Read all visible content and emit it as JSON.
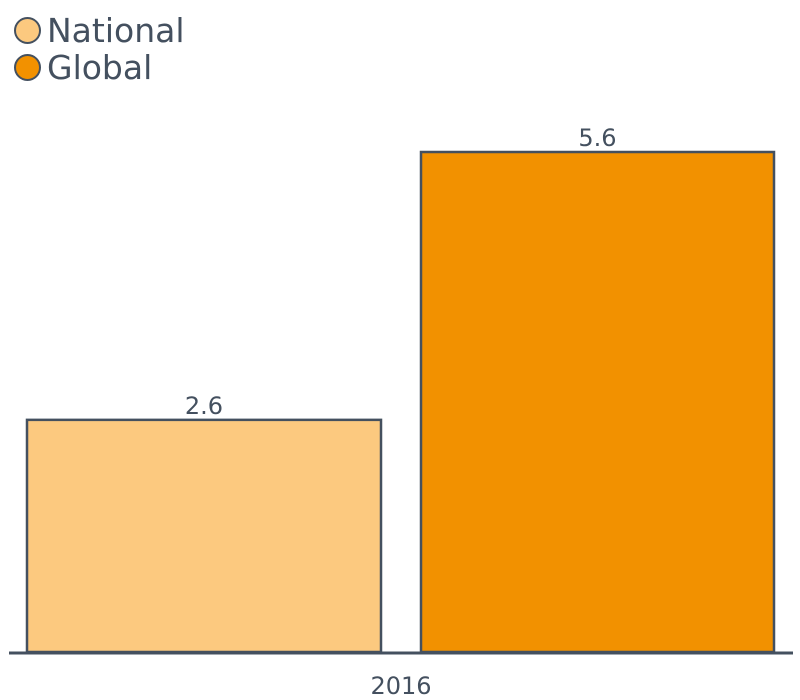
{
  "chart_data": {
    "type": "bar",
    "categories": [
      "2016"
    ],
    "series": [
      {
        "name": "National",
        "values": [
          2.6
        ],
        "color": "#fcc97f"
      },
      {
        "name": "Global",
        "values": [
          5.6
        ],
        "color": "#f29100"
      }
    ],
    "data_labels": [
      "2.6",
      "5.6"
    ],
    "title": "",
    "xlabel": "",
    "ylabel": "",
    "ylim": [
      0,
      5.6
    ],
    "grid": false,
    "legend_position": "top-left",
    "axis_color": "#44505f"
  }
}
